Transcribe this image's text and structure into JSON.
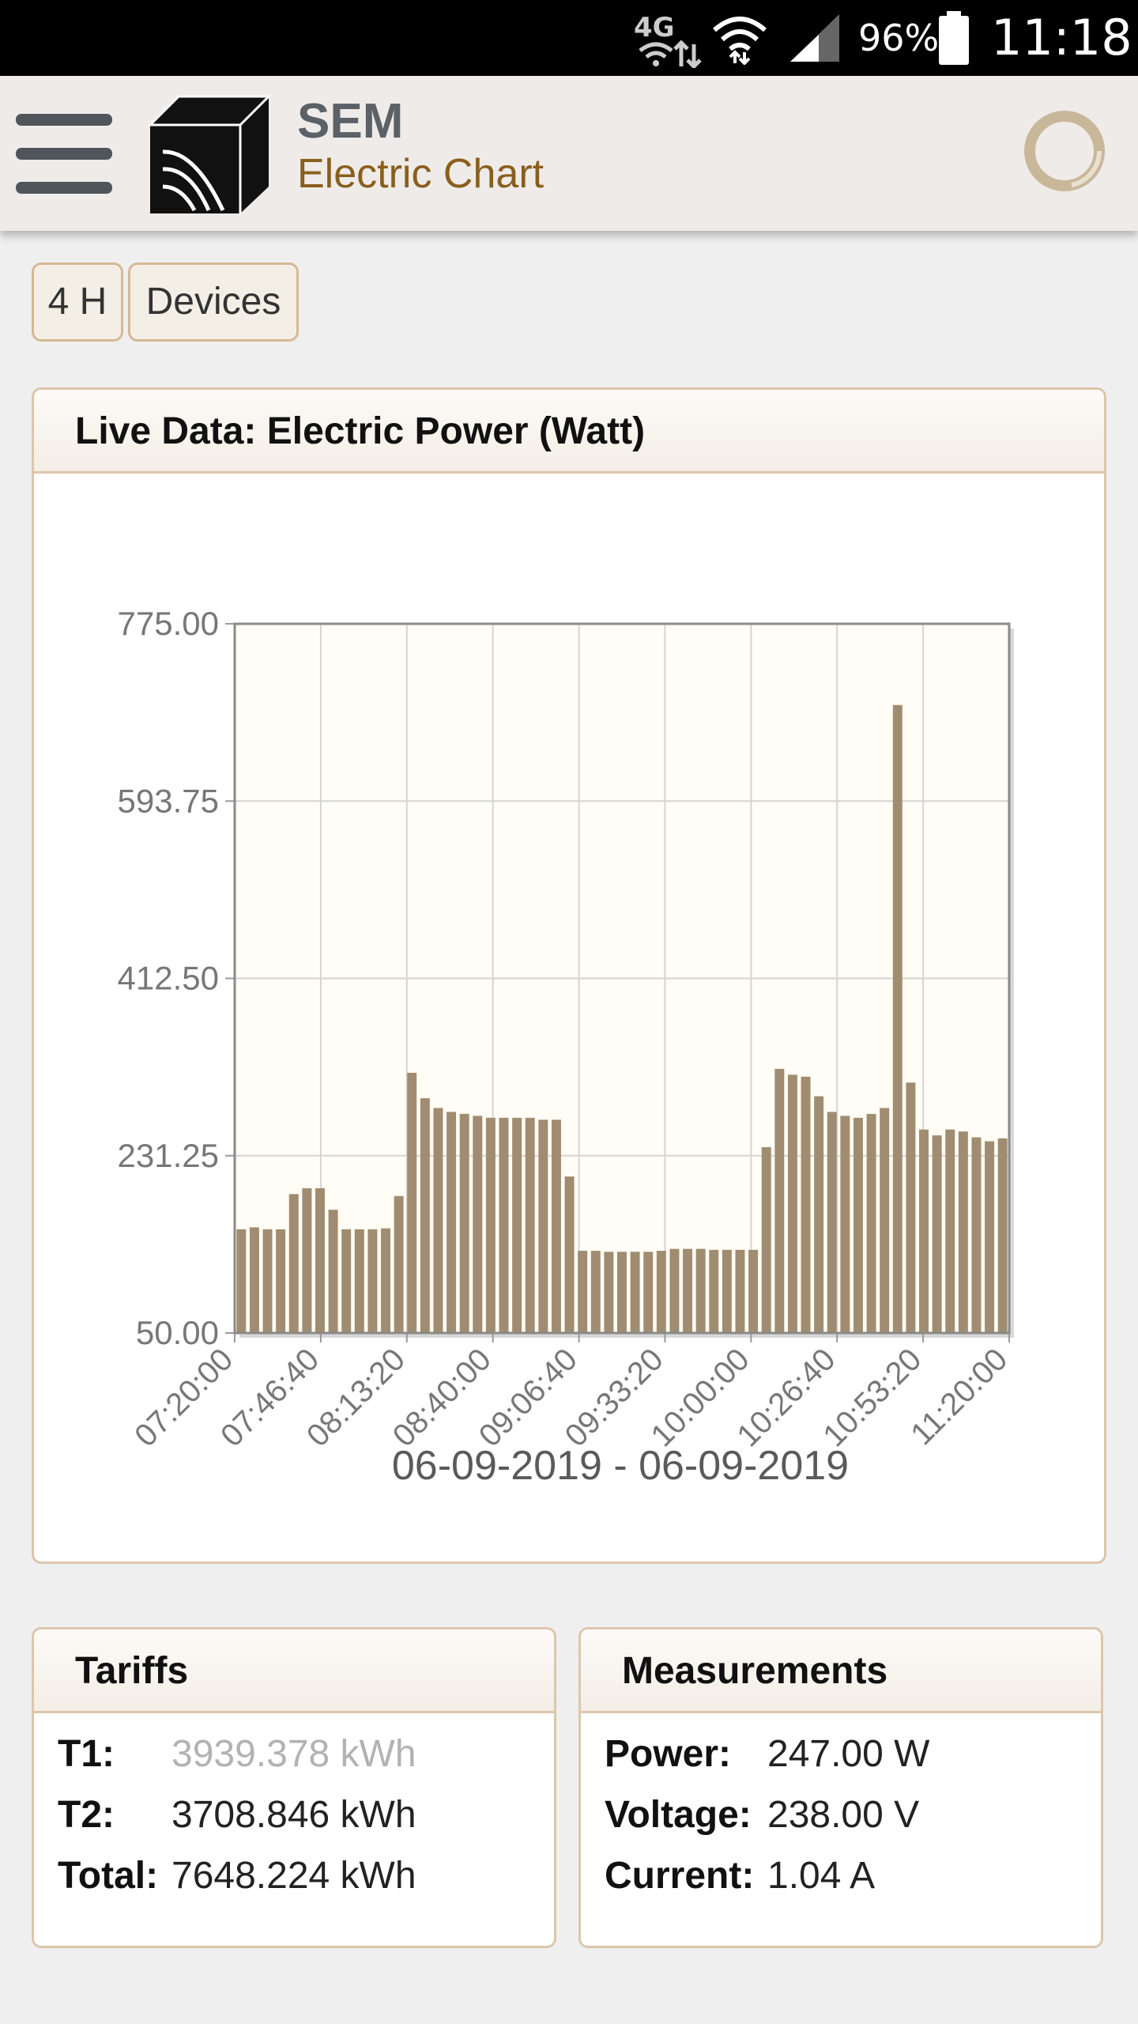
{
  "status_bar": {
    "network": "4G",
    "battery_percent": "96%",
    "time": "11:18"
  },
  "header": {
    "title": "SEM",
    "subtitle": "Electric Chart",
    "icons": [
      "menu-icon",
      "cube-logo",
      "refresh-ring-icon"
    ]
  },
  "filters": {
    "range_label": "4 H",
    "devices_label": "Devices"
  },
  "chart_panel": {
    "title": "Live Data: Electric Power (Watt)",
    "date_range": "06-09-2019 - 06-09-2019"
  },
  "chart_data": {
    "type": "bar",
    "title": "",
    "xlabel": "",
    "ylabel": "",
    "ylim": [
      50,
      775
    ],
    "yticks": [
      "775.00",
      "593.75",
      "412.50",
      "231.25",
      "50.00"
    ],
    "xticks": [
      "07:20:00",
      "07:46:40",
      "08:13:20",
      "08:40:00",
      "09:06:40",
      "09:33:20",
      "10:00:00",
      "10:26:40",
      "10:53:20",
      "11:20:00"
    ],
    "grid": true,
    "bar_color": "#a08c70",
    "plot_background": "#fffdf5",
    "series": [
      {
        "values": [
          156,
          158,
          156,
          156,
          192,
          198,
          198,
          176,
          156,
          156,
          156,
          157,
          190,
          316,
          290,
          280,
          276,
          274,
          272,
          270,
          270,
          270,
          270,
          268,
          268,
          210,
          134,
          134,
          133,
          133,
          133,
          133,
          134,
          136,
          136,
          136,
          135,
          135,
          135,
          135,
          240,
          320,
          314,
          312,
          292,
          276,
          272,
          270,
          274,
          280,
          692,
          306,
          258,
          252,
          258,
          256,
          250,
          246,
          249
        ]
      }
    ]
  },
  "tariffs": {
    "title": "Tariffs",
    "rows": [
      {
        "key": "T1:",
        "value": "3939.378 kWh"
      },
      {
        "key": "T2:",
        "value": "3708.846 kWh"
      },
      {
        "key": "Total:",
        "value": "7648.224 kWh"
      }
    ]
  },
  "measurements": {
    "title": "Measurements",
    "rows": [
      {
        "key": "Power:",
        "value": "247.00 W"
      },
      {
        "key": "Voltage:",
        "value": "238.00 V"
      },
      {
        "key": "Current:",
        "value": "1.04 A"
      }
    ]
  }
}
